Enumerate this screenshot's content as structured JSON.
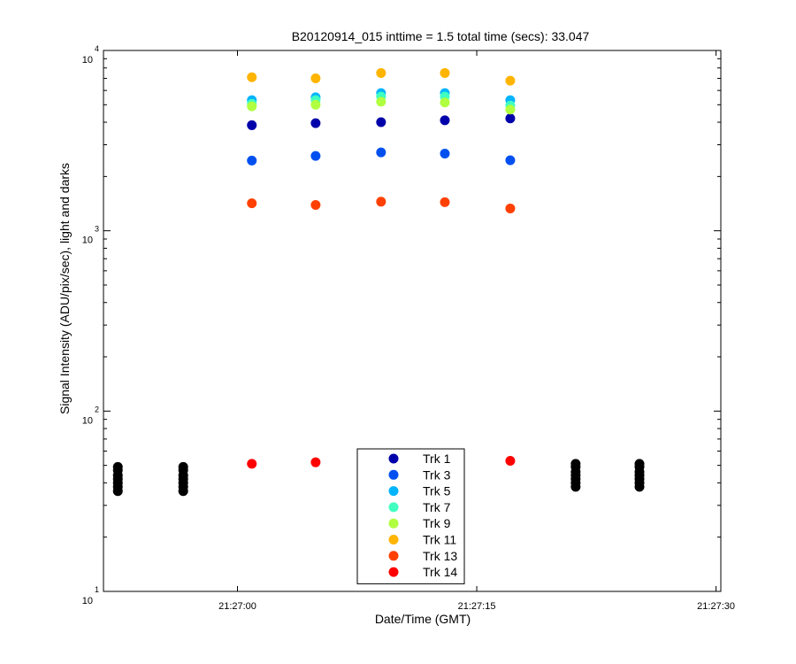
{
  "chart_data": {
    "type": "scatter",
    "title": "B20120914_015 inttime = 1.5 total time (secs): 33.047",
    "xlabel": "Date/Time (GMT)",
    "ylabel": "Signal Intensity (ADU/pix/sec), light and darks",
    "yscale": "log",
    "ylim": [
      10,
      10000
    ],
    "xlim": [
      "21:26:51.6",
      "21:27:30.3"
    ],
    "x_ticks": [
      "21:27:00",
      "21:27:15",
      "21:27:30"
    ],
    "y_ticks": [
      {
        "base": "10",
        "exp": "1"
      },
      {
        "base": "10",
        "exp": "2"
      },
      {
        "base": "10",
        "exp": "3"
      },
      {
        "base": "10",
        "exp": "4"
      }
    ],
    "grid": false,
    "legend_position": "bottom-center",
    "light_times": [
      "21:27:00.9",
      "21:27:04.9",
      "21:27:09.0",
      "21:27:13.0",
      "21:27:17.1"
    ],
    "series": [
      {
        "name": "Trk 1",
        "color": "#0000aa",
        "values": [
          3850,
          3950,
          4000,
          4100,
          4200
        ]
      },
      {
        "name": "Trk 3",
        "color": "#0050f0",
        "values": [
          2450,
          2600,
          2720,
          2680,
          2460
        ]
      },
      {
        "name": "Trk 5",
        "color": "#00b4ff",
        "values": [
          5300,
          5500,
          5800,
          5800,
          5300
        ]
      },
      {
        "name": "Trk 7",
        "color": "#40ffc0",
        "values": [
          5050,
          5300,
          5550,
          5550,
          4950
        ]
      },
      {
        "name": "Trk 9",
        "color": "#b0ff40",
        "values": [
          4900,
          5000,
          5200,
          5150,
          4700
        ]
      },
      {
        "name": "Trk 11",
        "color": "#ffb400",
        "values": [
          7100,
          7000,
          7500,
          7500,
          6800
        ]
      },
      {
        "name": "Trk 13",
        "color": "#ff4000",
        "values": [
          1420,
          1390,
          1450,
          1440,
          1330
        ]
      },
      {
        "name": "Trk 14",
        "color": "#ff0000",
        "values": [
          null,
          null,
          null,
          null,
          null
        ]
      }
    ],
    "trk14_points": [
      {
        "x": "21:27:00.9",
        "y": 51
      },
      {
        "x": "21:27:04.9",
        "y": 52
      },
      {
        "x": "21:27:17.1",
        "y": 53
      }
    ],
    "darks": {
      "color": "#000000",
      "times": [
        "21:26:52.5",
        "21:26:56.6",
        "21:27:21.2",
        "21:27:25.2"
      ],
      "values": [
        [
          36,
          38,
          40,
          42,
          44,
          47,
          49
        ],
        [
          36,
          38,
          40,
          42,
          44,
          47,
          49
        ],
        [
          38,
          40,
          42,
          44,
          46,
          49,
          51
        ],
        [
          38,
          40,
          42,
          44,
          46,
          49,
          51
        ]
      ]
    }
  }
}
